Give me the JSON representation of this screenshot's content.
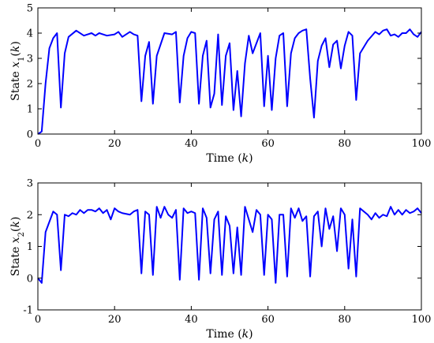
{
  "chart_data": [
    {
      "type": "line",
      "xlabel": "Time (k)",
      "xlabel_parts": [
        "Time (",
        "k",
        ")"
      ],
      "ylabel": "State x1(k)",
      "ylabel_parts": [
        "State ",
        "x",
        "1",
        "(",
        "k",
        ")"
      ],
      "xlim": [
        0,
        100
      ],
      "ylim": [
        0,
        5
      ],
      "xticks": [
        0,
        20,
        40,
        60,
        80,
        100
      ],
      "yticks": [
        0,
        1,
        2,
        3,
        4,
        5
      ],
      "grid": false,
      "series": [
        {
          "color": "#0000ff",
          "x": [
            0,
            1,
            2,
            3,
            4,
            5,
            6,
            7,
            8,
            10,
            12,
            14,
            15,
            16,
            18,
            20,
            21,
            22,
            24,
            25,
            26,
            27,
            28,
            29,
            30,
            31,
            33,
            35,
            36,
            37,
            38,
            39,
            40,
            41,
            42,
            43,
            44,
            45,
            46,
            47,
            48,
            49,
            50,
            51,
            52,
            53,
            54,
            55,
            56,
            58,
            59,
            60,
            61,
            62,
            63,
            64,
            65,
            66,
            67,
            68,
            69,
            70,
            71,
            72,
            73,
            74,
            75,
            76,
            77,
            78,
            79,
            80,
            81,
            82,
            83,
            84,
            86,
            88,
            89,
            90,
            91,
            92,
            93,
            94,
            95,
            96,
            97,
            98,
            99,
            100
          ],
          "y": [
            0,
            0.1,
            2.0,
            3.4,
            3.8,
            4.0,
            1.05,
            3.2,
            3.85,
            4.1,
            3.9,
            4.0,
            3.9,
            4.0,
            3.9,
            3.95,
            4.05,
            3.85,
            4.05,
            3.95,
            3.9,
            1.3,
            3.1,
            3.65,
            1.2,
            3.1,
            4.0,
            3.95,
            4.05,
            1.25,
            3.1,
            3.8,
            4.05,
            4.0,
            1.2,
            3.1,
            3.7,
            1.05,
            1.6,
            3.95,
            1.15,
            3.1,
            3.6,
            0.95,
            2.5,
            0.7,
            2.8,
            3.9,
            3.2,
            4.0,
            1.1,
            3.1,
            0.95,
            3.0,
            3.9,
            4.0,
            1.1,
            3.2,
            3.8,
            4.0,
            4.1,
            4.15,
            2.2,
            0.65,
            2.9,
            3.5,
            3.8,
            2.65,
            3.55,
            3.7,
            2.6,
            3.5,
            4.05,
            3.9,
            1.35,
            3.2,
            3.7,
            4.05,
            3.95,
            4.1,
            4.15,
            3.9,
            3.95,
            3.85,
            4.0,
            4.0,
            4.15,
            3.95,
            3.85,
            4.05
          ]
        }
      ]
    },
    {
      "type": "line",
      "xlabel": "Time (k)",
      "xlabel_parts": [
        "Time (",
        "k",
        ")"
      ],
      "ylabel": "State x2(k)",
      "ylabel_parts": [
        "State ",
        "x",
        "2",
        "(",
        "k",
        ")"
      ],
      "xlim": [
        0,
        100
      ],
      "ylim": [
        -1,
        3
      ],
      "xticks": [
        0,
        20,
        40,
        60,
        80,
        100
      ],
      "yticks": [
        -1,
        0,
        1,
        2,
        3
      ],
      "grid": false,
      "series": [
        {
          "color": "#0000ff",
          "x": [
            0,
            1,
            2,
            4,
            5,
            6,
            7,
            8,
            9,
            10,
            11,
            12,
            13,
            14,
            15,
            16,
            17,
            18,
            19,
            20,
            21,
            22,
            24,
            25,
            26,
            27,
            28,
            29,
            30,
            31,
            32,
            33,
            34,
            35,
            36,
            37,
            38,
            39,
            40,
            41,
            42,
            43,
            44,
            45,
            46,
            47,
            48,
            49,
            50,
            51,
            52,
            53,
            54,
            56,
            57,
            58,
            59,
            60,
            61,
            62,
            63,
            64,
            65,
            66,
            67,
            68,
            69,
            70,
            71,
            72,
            73,
            74,
            75,
            76,
            77,
            78,
            79,
            80,
            81,
            82,
            83,
            84,
            86,
            87,
            88,
            89,
            90,
            91,
            92,
            93,
            94,
            95,
            96,
            97,
            98,
            99,
            100
          ],
          "y": [
            0,
            -0.15,
            1.45,
            2.1,
            2.0,
            0.25,
            2.0,
            1.95,
            2.05,
            2.0,
            2.15,
            2.05,
            2.15,
            2.15,
            2.1,
            2.2,
            2.05,
            2.15,
            1.85,
            2.2,
            2.1,
            2.05,
            2.0,
            2.1,
            2.15,
            0.15,
            2.1,
            2.0,
            0.1,
            2.25,
            1.9,
            2.25,
            2.0,
            1.9,
            2.15,
            -0.05,
            2.2,
            2.05,
            2.1,
            2.05,
            -0.05,
            2.2,
            1.9,
            0.15,
            1.85,
            2.1,
            0.1,
            1.95,
            1.65,
            0.15,
            1.6,
            0.1,
            2.25,
            1.45,
            2.15,
            2.0,
            0.1,
            2.0,
            1.85,
            -0.15,
            2.0,
            2.0,
            0.05,
            2.2,
            1.9,
            2.2,
            1.8,
            1.95,
            0.05,
            1.95,
            2.1,
            1.0,
            2.2,
            1.55,
            1.95,
            0.85,
            2.2,
            2.0,
            0.3,
            1.85,
            0.05,
            2.2,
            2.0,
            1.85,
            2.05,
            1.9,
            2.0,
            1.95,
            2.25,
            2.0,
            2.15,
            2.0,
            2.15,
            2.05,
            2.1,
            2.2,
            2.05
          ]
        }
      ]
    }
  ]
}
